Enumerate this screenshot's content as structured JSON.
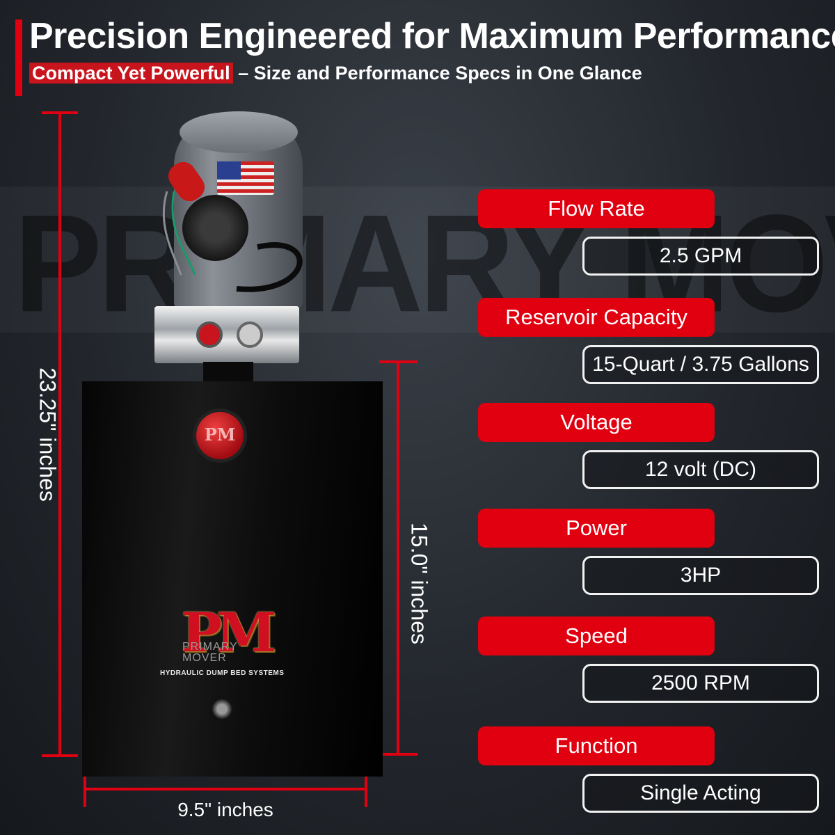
{
  "header": {
    "title": "Precision Engineered for Maximum Performance",
    "subtitle_highlight": "Compact Yet Powerful",
    "subtitle_rest": " – Size and Performance Specs in One Glance"
  },
  "watermark": "PRIMARY MOVER",
  "dimensions": {
    "height_total": "23.25\" inches",
    "height_tank": "15.0\" inches",
    "width": "9.5\" inches"
  },
  "product": {
    "cap_mark": "PM",
    "logo_mark": "PM",
    "logo_brand_line1": "PRIMARY",
    "logo_brand_line2": "MOVER",
    "logo_tagline": "HYDRAULIC DUMP BED SYSTEMS"
  },
  "specs": [
    {
      "label": "Flow Rate",
      "value": "2.5 GPM"
    },
    {
      "label": "Reservoir Capacity",
      "value": "15-Quart / 3.75 Gallons"
    },
    {
      "label": "Voltage",
      "value": "12 volt (DC)"
    },
    {
      "label": "Power",
      "value": "3HP"
    },
    {
      "label": "Speed",
      "value": "2500 RPM"
    },
    {
      "label": "Function",
      "value": "Single Acting"
    }
  ],
  "colors": {
    "accent": "#e00012",
    "background": "#23272d"
  }
}
